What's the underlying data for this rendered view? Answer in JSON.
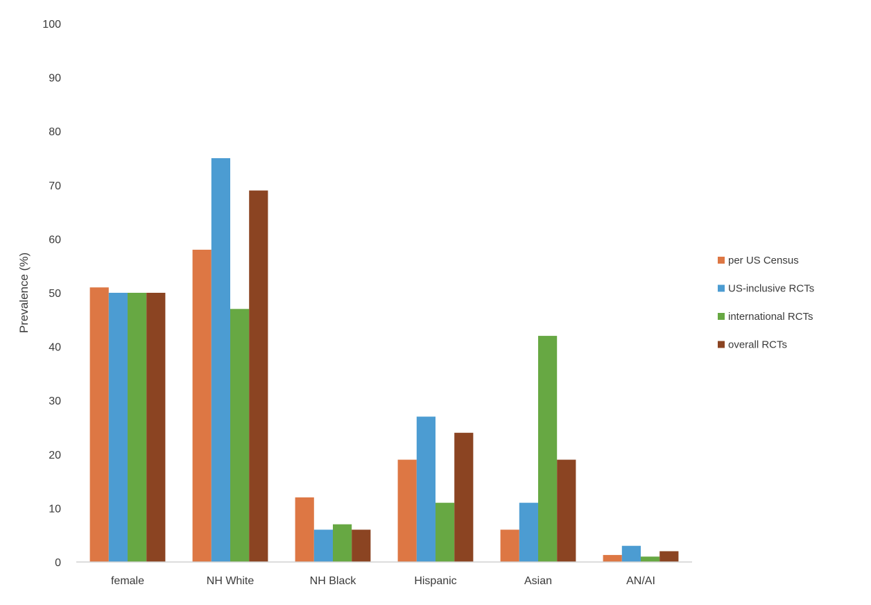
{
  "chart_data": {
    "type": "bar",
    "title": "",
    "xlabel": "",
    "ylabel": "Prevalence (%)",
    "ylim": [
      0,
      100
    ],
    "yticks": [
      0,
      10,
      20,
      30,
      40,
      50,
      60,
      70,
      80,
      90,
      100
    ],
    "categories": [
      "female",
      "NH White",
      "NH Black",
      "Hispanic",
      "Asian",
      "AN/AI"
    ],
    "series": [
      {
        "name": "per US Census",
        "color": "#DD7744",
        "values": [
          51,
          58,
          12,
          19,
          6,
          1.3
        ]
      },
      {
        "name": "US-inclusive RCTs",
        "color": "#4C9CD2",
        "values": [
          50,
          75,
          6,
          27,
          11,
          3
        ]
      },
      {
        "name": "international RCTs",
        "color": "#67A843",
        "values": [
          50,
          47,
          7,
          11,
          42,
          1
        ]
      },
      {
        "name": "overall RCTs",
        "color": "#8B4422",
        "values": [
          50,
          69,
          6,
          24,
          19,
          2
        ]
      }
    ],
    "grid": false,
    "legend_position": "right"
  }
}
